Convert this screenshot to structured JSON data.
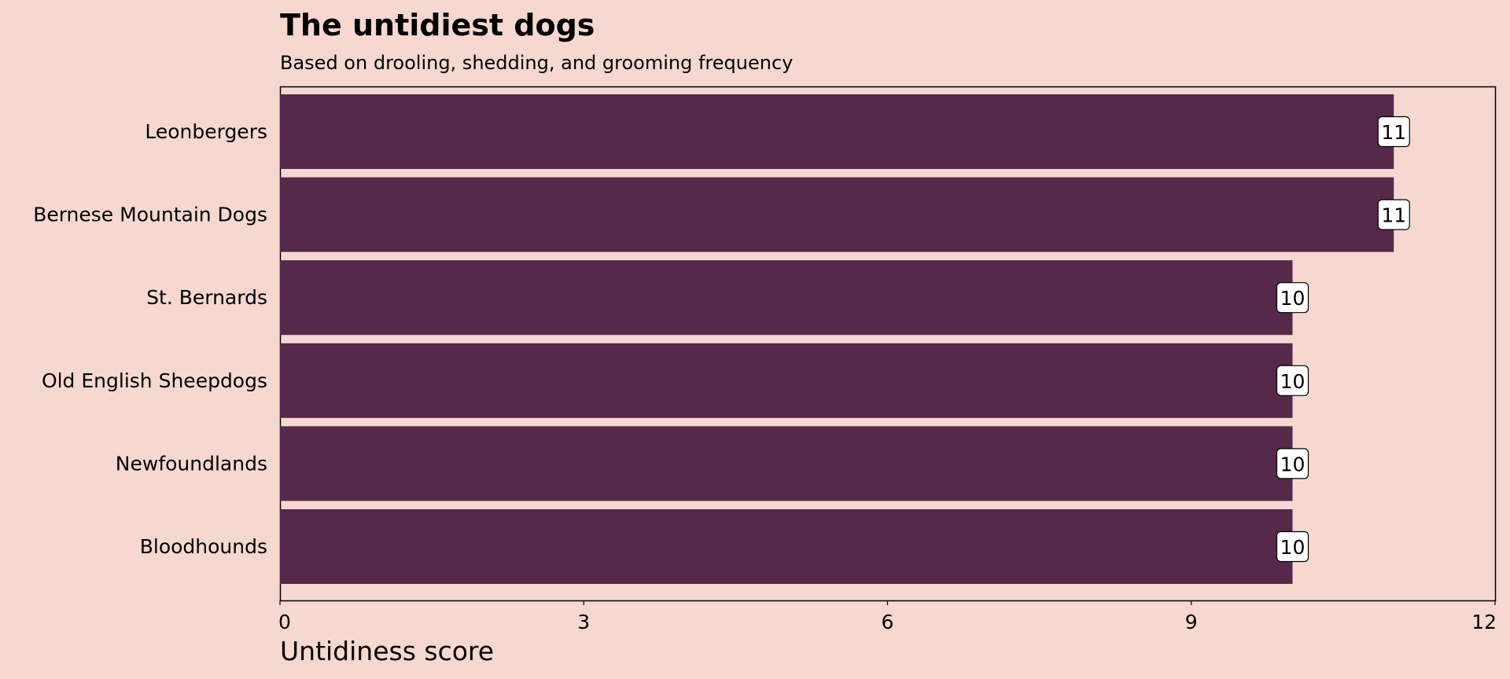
{
  "chart_data": {
    "type": "bar",
    "orientation": "horizontal",
    "title": "The untidiest dogs",
    "subtitle": "Based on drooling, shedding, and grooming frequency",
    "xlabel": "Untidiness score",
    "ylabel": "",
    "categories": [
      "Leonbergers",
      "Bernese Mountain Dogs",
      "St. Bernards",
      "Old English Sheepdogs",
      "Newfoundlands",
      "Bloodhounds"
    ],
    "values": [
      11,
      11,
      10,
      10,
      10,
      10
    ],
    "value_labels": [
      "11",
      "11",
      "10",
      "10",
      "10",
      "10"
    ],
    "xlim": [
      0,
      12
    ],
    "xticks": [
      0,
      3,
      6,
      9,
      12
    ],
    "xtick_labels": [
      "0",
      "3",
      "6",
      "9",
      "12"
    ],
    "grid": false,
    "legend": "none",
    "colors": {
      "background": "#f6d8d1",
      "bar": "#562849",
      "label_box": "#ffffff",
      "text": "#000000"
    }
  }
}
